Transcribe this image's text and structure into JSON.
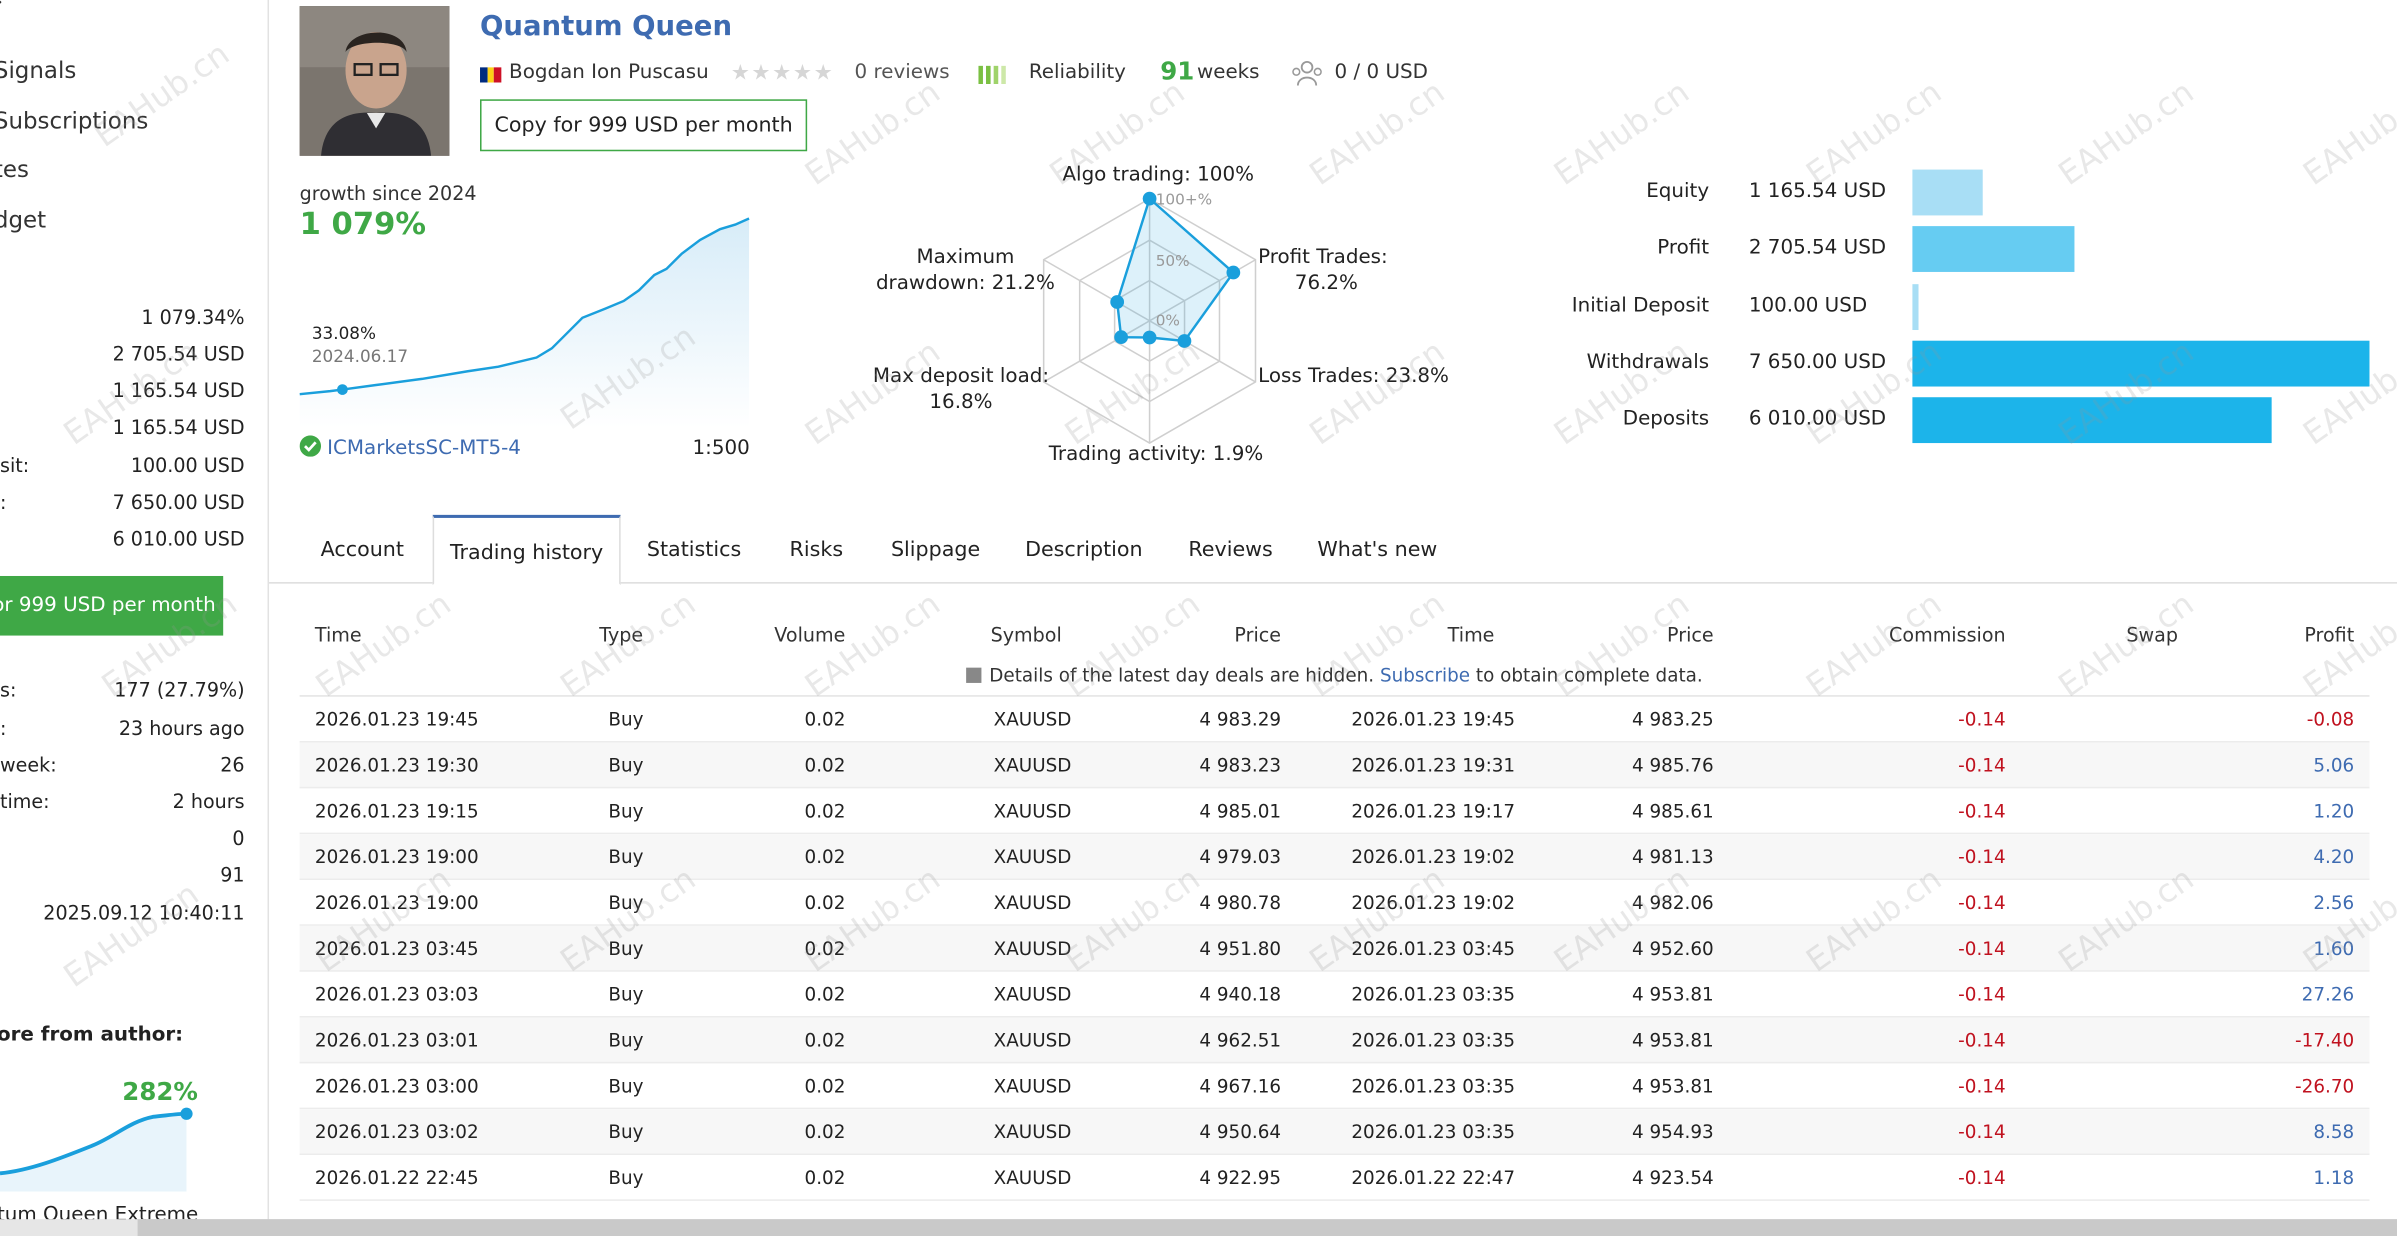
{
  "sidebar": {
    "nav": [
      "Signals",
      "Subscriptions",
      "tes",
      "dget"
    ],
    "stats_top": [
      {
        "label": "",
        "value": "1 079.34%"
      },
      {
        "label": "",
        "value": "2 705.54 USD"
      },
      {
        "label": "",
        "value": "1 165.54 USD"
      },
      {
        "label": "",
        "value": "1 165.54 USD"
      },
      {
        "label": "sit:",
        "value": "100.00 USD"
      },
      {
        "label": ":",
        "value": "7 650.00 USD"
      },
      {
        "label": "",
        "value": "6 010.00 USD"
      }
    ],
    "copy_label": "or 999 USD per month",
    "stats_bottom": [
      {
        "label": "s:",
        "value": "177 (27.79%)"
      },
      {
        "label": ":",
        "value": "23 hours ago"
      },
      {
        "label": "week:",
        "value": "26"
      },
      {
        "label": "time:",
        "value": "2 hours"
      },
      {
        "label": "",
        "value": "0"
      },
      {
        "label": "",
        "value": "91"
      },
      {
        "label": "",
        "value": "2025.09.12 10:40:11"
      }
    ],
    "more_label": "ore from author:",
    "more_pct": "282%",
    "more_name": "tum Queen Extreme"
  },
  "header": {
    "title": "Quantum Queen",
    "author": "Bogdan Ion Puscasu",
    "reviews": "0 reviews",
    "reliability": "Reliability",
    "weeks_num": "91",
    "weeks_label": "weeks",
    "subscribers": "0 / 0 USD",
    "copy_label": "Copy for 999 USD per month"
  },
  "growth": {
    "label": "growth since 2024",
    "value": "1 079%",
    "tooltip_value": "33.08%",
    "tooltip_date": "2024.06.17",
    "broker": "ICMarketsSC-MT5-4",
    "leverage": "1:500"
  },
  "radar": {
    "algo": "Algo trading: 100%",
    "profit_trades_1": "Profit Trades:",
    "profit_trades_2": "76.2%",
    "loss_trades": "Loss Trades: 23.8%",
    "activity": "Trading activity: 1.9%",
    "deposit_load_1": "Max deposit load:",
    "deposit_load_2": "16.8%",
    "drawdown_1": "Maximum",
    "drawdown_2": "drawdown: 21.2%",
    "scale_100": "100+%",
    "scale_50": "50%",
    "scale_0": "0%",
    "values": [
      100,
      76.2,
      23.8,
      1.9,
      16.8,
      21.2
    ]
  },
  "balance": [
    {
      "label": "Equity",
      "value": "1 165.54 USD",
      "amount": 1165.54,
      "color": "#a8def5"
    },
    {
      "label": "Profit",
      "value": "2 705.54 USD",
      "amount": 2705.54,
      "color": "#66ccf2"
    },
    {
      "label": "Initial Deposit",
      "value": "100.00 USD",
      "amount": 100.0,
      "color": "#a8def5"
    },
    {
      "label": "Withdrawals",
      "value": "7 650.00 USD",
      "amount": 7650.0,
      "color": "#1cb4ea"
    },
    {
      "label": "Deposits",
      "value": "6 010.00 USD",
      "amount": 6010.0,
      "color": "#1cb4ea"
    }
  ],
  "tabs": [
    "Account",
    "Trading history",
    "Statistics",
    "Risks",
    "Slippage",
    "Description",
    "Reviews",
    "What's new"
  ],
  "table": {
    "headers": [
      "Time",
      "Type",
      "Volume",
      "Symbol",
      "Price",
      "Time",
      "Price",
      "Commission",
      "Swap",
      "Profit"
    ],
    "notice_text": "Details of the latest day deals are hidden.",
    "notice_link": "Subscribe",
    "notice_tail": "to obtain complete data.",
    "rows": [
      [
        "2026.01.23 19:45",
        "Buy",
        "0.02",
        "XAUUSD",
        "4 983.29",
        "2026.01.23 19:45",
        "4 983.25",
        "-0.14",
        "",
        "-0.08"
      ],
      [
        "2026.01.23 19:30",
        "Buy",
        "0.02",
        "XAUUSD",
        "4 983.23",
        "2026.01.23 19:31",
        "4 985.76",
        "-0.14",
        "",
        "5.06"
      ],
      [
        "2026.01.23 19:15",
        "Buy",
        "0.02",
        "XAUUSD",
        "4 985.01",
        "2026.01.23 19:17",
        "4 985.61",
        "-0.14",
        "",
        "1.20"
      ],
      [
        "2026.01.23 19:00",
        "Buy",
        "0.02",
        "XAUUSD",
        "4 979.03",
        "2026.01.23 19:02",
        "4 981.13",
        "-0.14",
        "",
        "4.20"
      ],
      [
        "2026.01.23 19:00",
        "Buy",
        "0.02",
        "XAUUSD",
        "4 980.78",
        "2026.01.23 19:02",
        "4 982.06",
        "-0.14",
        "",
        "2.56"
      ],
      [
        "2026.01.23 03:45",
        "Buy",
        "0.02",
        "XAUUSD",
        "4 951.80",
        "2026.01.23 03:45",
        "4 952.60",
        "-0.14",
        "",
        "1.60"
      ],
      [
        "2026.01.23 03:03",
        "Buy",
        "0.02",
        "XAUUSD",
        "4 940.18",
        "2026.01.23 03:35",
        "4 953.81",
        "-0.14",
        "",
        "27.26"
      ],
      [
        "2026.01.23 03:01",
        "Buy",
        "0.02",
        "XAUUSD",
        "4 962.51",
        "2026.01.23 03:35",
        "4 953.81",
        "-0.14",
        "",
        "-17.40"
      ],
      [
        "2026.01.23 03:00",
        "Buy",
        "0.02",
        "XAUUSD",
        "4 967.16",
        "2026.01.23 03:35",
        "4 953.81",
        "-0.14",
        "",
        "-26.70"
      ],
      [
        "2026.01.23 03:02",
        "Buy",
        "0.02",
        "XAUUSD",
        "4 950.64",
        "2026.01.23 03:35",
        "4 954.93",
        "-0.14",
        "",
        "8.58"
      ],
      [
        "2026.01.22 22:45",
        "Buy",
        "0.02",
        "XAUUSD",
        "4 922.95",
        "2026.01.22 22:47",
        "4 923.54",
        "-0.14",
        "",
        "1.18"
      ]
    ]
  },
  "watermark": "EAHub.cn",
  "colors": {
    "accent": "#3e6bb1",
    "green": "#3fa846",
    "negative": "#c0121f",
    "chart_line": "#1a9fdc"
  }
}
